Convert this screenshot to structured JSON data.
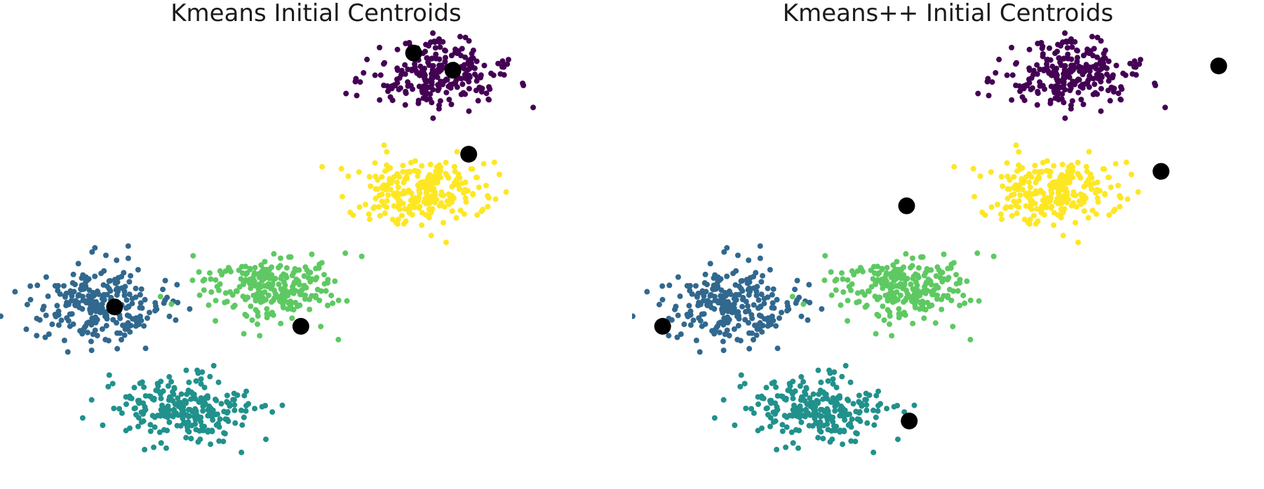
{
  "chart_data": [
    {
      "type": "scatter",
      "title": "Kmeans Initial Centroids",
      "grid": false,
      "axes": "hidden",
      "xlim": [
        -10,
        13
      ],
      "ylim": [
        -11,
        10
      ],
      "colors": {
        "c0": "#440154",
        "c1": "#31688e",
        "c2": "#21918c",
        "c3": "#5ec962",
        "c4": "#fde725",
        "centroid": "#000000"
      },
      "clusters": [
        {
          "name": "",
          "color_key": "c0",
          "center": [
            5.5,
            8.0
          ],
          "spread": [
            1.3,
            0.8
          ],
          "n": 250
        },
        {
          "name": "",
          "color_key": "c1",
          "center": [
            -7.3,
            -2.7
          ],
          "spread": [
            1.3,
            0.9
          ],
          "n": 250
        },
        {
          "name": "",
          "color_key": "c2",
          "center": [
            -4.0,
            -7.6
          ],
          "spread": [
            1.3,
            0.8
          ],
          "n": 250
        },
        {
          "name": "",
          "color_key": "c3",
          "center": [
            -0.8,
            -1.9
          ],
          "spread": [
            1.3,
            0.8
          ],
          "n": 250
        },
        {
          "name": "",
          "color_key": "c4",
          "center": [
            5.0,
            2.6
          ],
          "spread": [
            1.3,
            0.8
          ],
          "n": 250
        }
      ],
      "centroids": [
        [
          4.7,
          9.0
        ],
        [
          6.2,
          8.2
        ],
        [
          6.8,
          4.3
        ],
        [
          -6.7,
          -2.8
        ],
        [
          0.4,
          -3.7
        ]
      ]
    },
    {
      "type": "scatter",
      "title": "Kmeans++ Initial Centroids",
      "grid": false,
      "axes": "hidden",
      "xlim": [
        -10,
        13
      ],
      "ylim": [
        -11,
        10
      ],
      "colors": {
        "c0": "#440154",
        "c1": "#31688e",
        "c2": "#21918c",
        "c3": "#5ec962",
        "c4": "#fde725",
        "centroid": "#000000"
      },
      "clusters": [
        {
          "name": "",
          "color_key": "c0",
          "center": [
            5.5,
            8.0
          ],
          "spread": [
            1.3,
            0.8
          ],
          "n": 250
        },
        {
          "name": "",
          "color_key": "c1",
          "center": [
            -7.3,
            -2.7
          ],
          "spread": [
            1.3,
            0.9
          ],
          "n": 250
        },
        {
          "name": "",
          "color_key": "c2",
          "center": [
            -4.0,
            -7.6
          ],
          "spread": [
            1.3,
            0.8
          ],
          "n": 250
        },
        {
          "name": "",
          "color_key": "c3",
          "center": [
            -0.8,
            -1.9
          ],
          "spread": [
            1.3,
            0.8
          ],
          "n": 250
        },
        {
          "name": "",
          "color_key": "c4",
          "center": [
            5.0,
            2.6
          ],
          "spread": [
            1.3,
            0.8
          ],
          "n": 250
        }
      ],
      "centroids": [
        [
          11.3,
          8.4
        ],
        [
          9.1,
          3.5
        ],
        [
          -0.6,
          1.9
        ],
        [
          -9.9,
          -3.7
        ],
        [
          -0.5,
          -8.1
        ]
      ]
    }
  ]
}
